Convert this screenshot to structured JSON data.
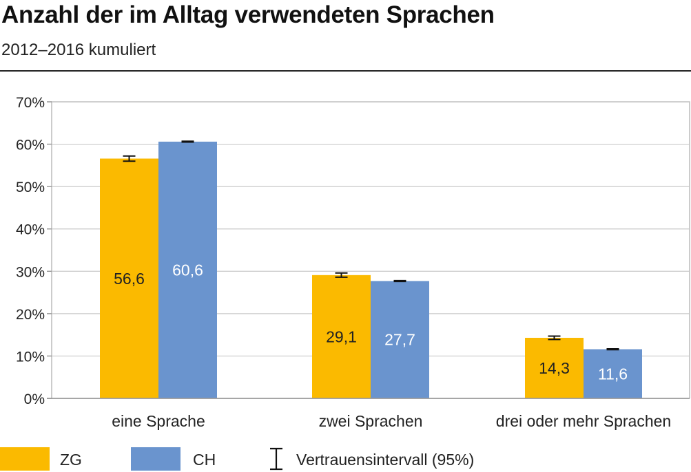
{
  "header": {
    "title": "Anzahl der im Alltag verwendeten Sprachen",
    "subtitle": "2012–2016 kumuliert"
  },
  "colors": {
    "ZG": "#FBBA00",
    "CH": "#6A94CE",
    "error_bar": "#111111",
    "grid": "#C8C8C8",
    "axis": "#999999",
    "plot_border": "#BBBBBB"
  },
  "chart_data": {
    "type": "bar",
    "title": "Anzahl der im Alltag verwendeten Sprachen",
    "subtitle": "2012–2016 kumuliert",
    "categories": [
      "eine Sprache",
      "zwei Sprachen",
      "drei oder mehr Sprachen"
    ],
    "series": [
      {
        "name": "ZG",
        "values": [
          56.6,
          29.1,
          14.3
        ],
        "value_labels": [
          "56,6",
          "29,1",
          "14,3"
        ],
        "ci": [
          [
            56.0,
            57.2
          ],
          [
            28.6,
            29.6
          ],
          [
            13.9,
            14.7
          ]
        ]
      },
      {
        "name": "CH",
        "values": [
          60.6,
          27.7,
          11.6
        ],
        "value_labels": [
          "60,6",
          "27,7",
          "11,6"
        ],
        "ci": [
          [
            60.5,
            60.7
          ],
          [
            27.6,
            27.8
          ],
          [
            11.5,
            11.7
          ]
        ]
      }
    ],
    "ylim": [
      0,
      70
    ],
    "yticks": [
      0,
      10,
      20,
      30,
      40,
      50,
      60,
      70
    ],
    "ytick_labels": [
      "0%",
      "10%",
      "20%",
      "30%",
      "40%",
      "50%",
      "60%",
      "70%"
    ],
    "xlabel": "",
    "ylabel": "",
    "grid": true,
    "legend": {
      "placement": "bottom",
      "entries": [
        "ZG",
        "CH",
        "Vertrauensintervall (95%)"
      ]
    }
  }
}
